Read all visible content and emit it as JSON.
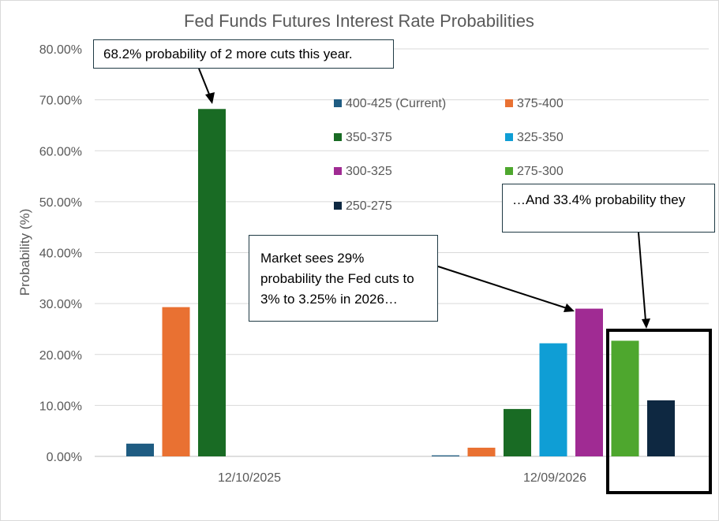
{
  "chart_data": {
    "type": "bar",
    "title": "Fed Funds Futures Interest Rate Probabilities",
    "ylabel": "Probability (%)",
    "xlabel": "",
    "ylim": [
      0,
      80
    ],
    "yticks": [
      "0.00%",
      "10.00%",
      "20.00%",
      "30.00%",
      "40.00%",
      "50.00%",
      "60.00%",
      "70.00%",
      "80.00%"
    ],
    "grid": true,
    "legend_position": "top-right",
    "categories": [
      "12/10/2025",
      "12/09/2026"
    ],
    "series": [
      {
        "name": "400-425 (Current)",
        "color": "#1f5c82",
        "values": [
          2.5,
          0.2
        ]
      },
      {
        "name": "375-400",
        "color": "#e97132",
        "values": [
          29.3,
          1.7
        ]
      },
      {
        "name": "350-375",
        "color": "#196b24",
        "values": [
          68.2,
          9.3
        ]
      },
      {
        "name": "325-350",
        "color": "#0f9ed5",
        "values": [
          null,
          22.2
        ]
      },
      {
        "name": "300-325",
        "color": "#a02b93",
        "values": [
          null,
          29.0
        ]
      },
      {
        "name": "275-300",
        "color": "#4ea72e",
        "values": [
          null,
          22.7
        ]
      },
      {
        "name": "250-275",
        "color": "#0e2841",
        "values": [
          null,
          11.0
        ]
      }
    ]
  },
  "annotations": {
    "callout_1": "68.2% probability of 2 more cuts this year.",
    "callout_2": "Market sees 29% probability the Fed cuts to 3% to 3.25% in 2026…",
    "callout_3": "…And 33.4% probability they"
  }
}
